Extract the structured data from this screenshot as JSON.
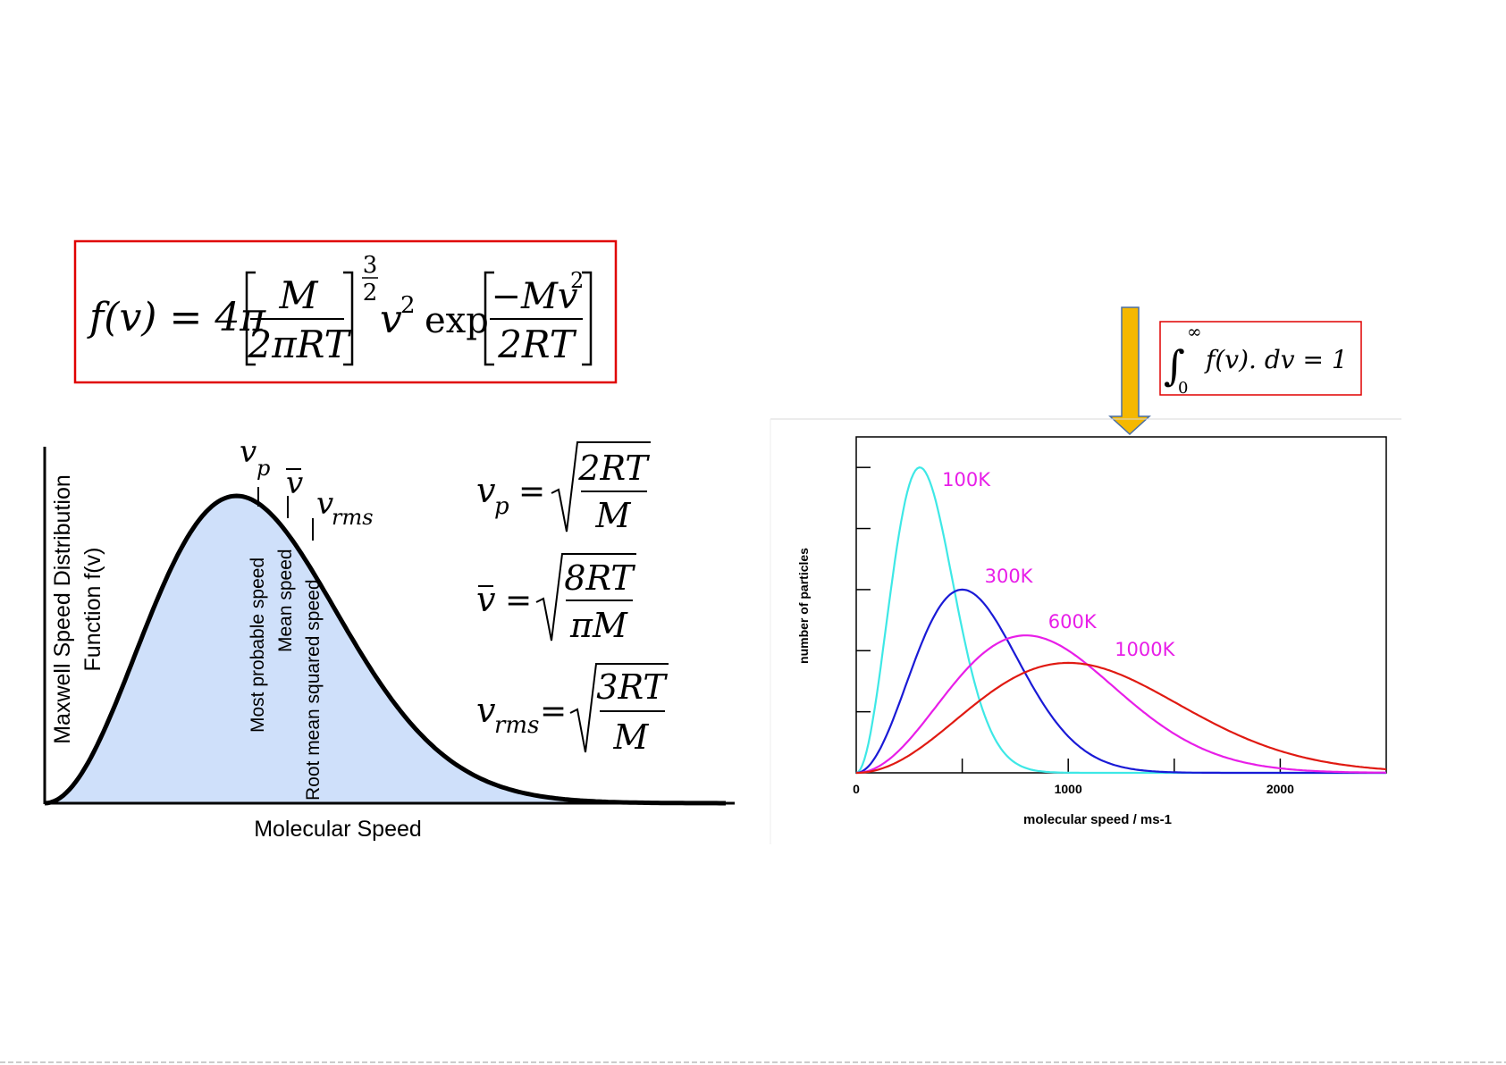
{
  "formula_box": {
    "lhs": "f(v) = 4π",
    "frac_num": "M",
    "frac_den": "2πRT",
    "exp_num": "3",
    "exp_den": "2",
    "v_sq": "v",
    "sq": "2",
    "exp_word": "exp",
    "exp_frac_num": "−Mv",
    "exp_frac_num_sq": "2",
    "exp_frac_den": "2RT",
    "border_color": "#e00000"
  },
  "integral_box": {
    "integral": "∫",
    "upper": "∞",
    "lower": "0",
    "body": "f(v). dv = 1",
    "border_color": "#e00000"
  },
  "arrow": {
    "color": "#f5b800",
    "outline": "#4a6fa5"
  },
  "left_chart": {
    "ylabel_line1": "Maxwell Speed Distribution",
    "ylabel_line2": "Function f(v)",
    "xlabel": "Molecular Speed",
    "fill_color": "#cfe0fa",
    "curve_color": "#000000",
    "markers": [
      {
        "symbol": "v",
        "sub": "p",
        "label": "Most probable speed"
      },
      {
        "symbol": "v",
        "bar": true,
        "sub": "",
        "label": "Mean speed"
      },
      {
        "symbol": "v",
        "sub": "rms",
        "label": "Root mean squared speed"
      }
    ],
    "equations": [
      {
        "lhs": "v",
        "lhs_sub": "p",
        "num": "2RT",
        "den": "M"
      },
      {
        "lhs": "v",
        "lhs_bar": true,
        "lhs_sub": "",
        "num": "8RT",
        "den": "πM"
      },
      {
        "lhs": "v",
        "lhs_sub": "rms",
        "num": "3RT",
        "den": "M"
      }
    ]
  },
  "chart_data": {
    "type": "line",
    "title": "",
    "xlabel": "molecular speed / ms-1",
    "ylabel": "number of particles",
    "xlim": [
      0,
      2500
    ],
    "xticks": [
      0,
      1000,
      2000
    ],
    "xtick_labels": [
      "0",
      "1000",
      "2000"
    ],
    "ylim": [
      0,
      1.1
    ],
    "legend": "inline labels at curve peaks",
    "grid": false,
    "series": [
      {
        "name": "100K",
        "color": "#3ee8e6",
        "temperature_K": 100,
        "peak_x": 300,
        "peak_y": 1.0
      },
      {
        "name": "300K",
        "color": "#1a1ad6",
        "temperature_K": 300,
        "peak_x": 500,
        "peak_y": 0.6
      },
      {
        "name": "600K",
        "color": "#e81ee8",
        "temperature_K": 600,
        "peak_x": 800,
        "peak_y": 0.45
      },
      {
        "name": "1000K",
        "color": "#e01a12",
        "temperature_K": 1000,
        "peak_x": 1000,
        "peak_y": 0.36
      }
    ]
  }
}
